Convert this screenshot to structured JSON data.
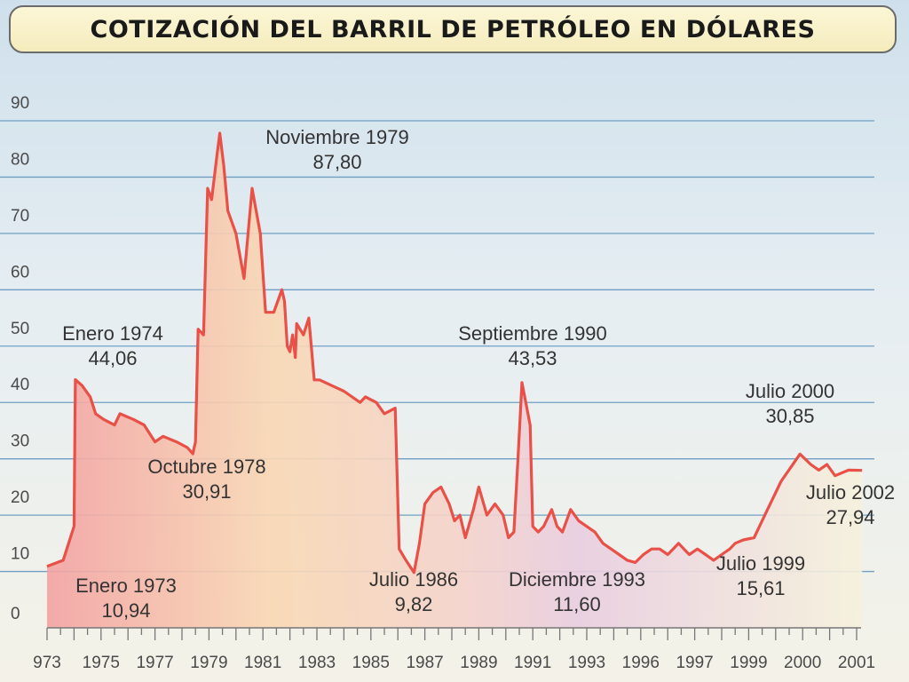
{
  "header": {
    "title": "COTIZACIÓN DEL BARRIL DE PETRÓLEO EN DÓLARES"
  },
  "chart_data": {
    "type": "area",
    "title": "COTIZACIÓN DEL BARRIL DE PETRÓLEO EN DÓLARES",
    "xlabel": "",
    "ylabel": "",
    "ylim": [
      0,
      90
    ],
    "xlim": [
      0,
      30.5
    ],
    "grid": true,
    "colors": {
      "line": "#e85048",
      "grid": "#6f9fc4",
      "fill_left": "#f3a2a2",
      "fill_mid": "#f9d8b4",
      "fill_right": "#f6f1dc"
    },
    "y_ticks": [
      "0",
      "10",
      "20",
      "30",
      "40",
      "50",
      "60",
      "70",
      "80",
      "90"
    ],
    "x_ticks": [
      {
        "pos": 0,
        "label": "973"
      },
      {
        "pos": 2,
        "label": "1975"
      },
      {
        "pos": 4,
        "label": "1977"
      },
      {
        "pos": 6,
        "label": "1979"
      },
      {
        "pos": 8,
        "label": "1981"
      },
      {
        "pos": 10,
        "label": "1983"
      },
      {
        "pos": 12,
        "label": "1985"
      },
      {
        "pos": 14,
        "label": "1987"
      },
      {
        "pos": 16,
        "label": "1989"
      },
      {
        "pos": 18,
        "label": "1991"
      },
      {
        "pos": 20,
        "label": "1993"
      },
      {
        "pos": 22,
        "label": "1996"
      },
      {
        "pos": 24,
        "label": "1997"
      },
      {
        "pos": 26,
        "label": "1999"
      },
      {
        "pos": 28,
        "label": "2000"
      },
      {
        "pos": 30,
        "label": "2001"
      }
    ],
    "series": [
      {
        "points": [
          [
            0,
            10.9
          ],
          [
            0.6,
            12
          ],
          [
            1.0,
            18
          ],
          [
            1.05,
            44.06
          ],
          [
            1.3,
            43
          ],
          [
            1.6,
            41
          ],
          [
            1.8,
            38
          ],
          [
            2.1,
            37
          ],
          [
            2.5,
            36
          ],
          [
            2.7,
            38
          ],
          [
            3.2,
            37
          ],
          [
            3.6,
            36
          ],
          [
            4.0,
            33
          ],
          [
            4.3,
            34
          ],
          [
            4.8,
            33
          ],
          [
            5.2,
            32
          ],
          [
            5.4,
            30.9
          ],
          [
            5.5,
            33
          ],
          [
            5.6,
            53
          ],
          [
            5.8,
            52
          ],
          [
            5.95,
            78
          ],
          [
            6.1,
            76
          ],
          [
            6.3,
            84
          ],
          [
            6.4,
            87.8
          ],
          [
            6.55,
            82
          ],
          [
            6.7,
            74
          ],
          [
            7.0,
            70
          ],
          [
            7.3,
            62
          ],
          [
            7.6,
            78
          ],
          [
            7.9,
            70
          ],
          [
            8.1,
            56
          ],
          [
            8.4,
            56
          ],
          [
            8.7,
            60
          ],
          [
            8.8,
            58
          ],
          [
            8.9,
            50
          ],
          [
            9.0,
            49
          ],
          [
            9.1,
            52
          ],
          [
            9.2,
            48
          ],
          [
            9.25,
            54
          ],
          [
            9.5,
            52
          ],
          [
            9.7,
            55
          ],
          [
            9.9,
            44
          ],
          [
            10.1,
            44
          ],
          [
            11.0,
            42
          ],
          [
            11.6,
            40
          ],
          [
            11.8,
            41
          ],
          [
            12.2,
            40
          ],
          [
            12.5,
            38
          ],
          [
            12.9,
            39
          ],
          [
            13.05,
            14
          ],
          [
            13.3,
            12
          ],
          [
            13.6,
            9.82
          ],
          [
            13.8,
            15
          ],
          [
            14.0,
            22
          ],
          [
            14.3,
            24
          ],
          [
            14.6,
            25
          ],
          [
            14.9,
            22
          ],
          [
            15.1,
            19
          ],
          [
            15.3,
            20
          ],
          [
            15.5,
            16
          ],
          [
            15.8,
            21
          ],
          [
            16.0,
            25
          ],
          [
            16.3,
            20
          ],
          [
            16.6,
            22
          ],
          [
            16.9,
            20
          ],
          [
            17.1,
            16
          ],
          [
            17.3,
            17
          ],
          [
            17.45,
            30
          ],
          [
            17.6,
            43.53
          ],
          [
            17.9,
            36
          ],
          [
            18.0,
            18
          ],
          [
            18.2,
            17
          ],
          [
            18.4,
            18
          ],
          [
            18.7,
            21
          ],
          [
            18.9,
            18
          ],
          [
            19.1,
            17
          ],
          [
            19.4,
            21
          ],
          [
            19.7,
            19
          ],
          [
            20.0,
            18
          ],
          [
            20.3,
            17
          ],
          [
            20.6,
            15
          ],
          [
            20.9,
            14
          ],
          [
            21.2,
            13
          ],
          [
            21.5,
            12
          ],
          [
            21.8,
            11.6
          ],
          [
            22.1,
            13
          ],
          [
            22.4,
            14
          ],
          [
            22.7,
            14
          ],
          [
            23.0,
            13
          ],
          [
            23.2,
            14
          ],
          [
            23.4,
            15
          ],
          [
            23.6,
            14
          ],
          [
            23.8,
            13
          ],
          [
            24.1,
            14
          ],
          [
            24.4,
            13
          ],
          [
            24.7,
            12
          ],
          [
            25.0,
            13
          ],
          [
            25.3,
            14
          ],
          [
            25.5,
            15
          ],
          [
            25.8,
            15.61
          ],
          [
            26.2,
            16
          ],
          [
            26.6,
            20
          ],
          [
            27.2,
            26
          ],
          [
            27.9,
            30.85
          ],
          [
            28.3,
            29
          ],
          [
            28.6,
            28
          ],
          [
            28.9,
            29
          ],
          [
            29.2,
            27
          ],
          [
            29.7,
            28
          ],
          [
            30.2,
            27.94
          ]
        ]
      }
    ],
    "annotations": [
      {
        "label": "Noviembre 1979",
        "value": "87,80",
        "x": 6.4,
        "y": 87.8
      },
      {
        "label": "Enero 1974",
        "value": "44,06",
        "x": 1.05,
        "y": 44.06
      },
      {
        "label": "Septiembre 1990",
        "value": "43,53",
        "x": 17.6,
        "y": 43.53
      },
      {
        "label": "Julio 2000",
        "value": "30,85",
        "x": 27.9,
        "y": 30.85
      },
      {
        "label": "Octubre 1978",
        "value": "30,91",
        "x": 5.4,
        "y": 30.9
      },
      {
        "label": "Julio 2002",
        "value": "27,94",
        "x": 30.2,
        "y": 27.94
      },
      {
        "label": "Enero 1973",
        "value": "10,94",
        "x": 0,
        "y": 10.9
      },
      {
        "label": "Julio 1986",
        "value": "9,82",
        "x": 13.6,
        "y": 9.82
      },
      {
        "label": "Diciembre 1993",
        "value": "11,60",
        "x": 21.8,
        "y": 11.6
      },
      {
        "label": "Julio 1999",
        "value": "15,61",
        "x": 25.8,
        "y": 15.61
      }
    ]
  }
}
